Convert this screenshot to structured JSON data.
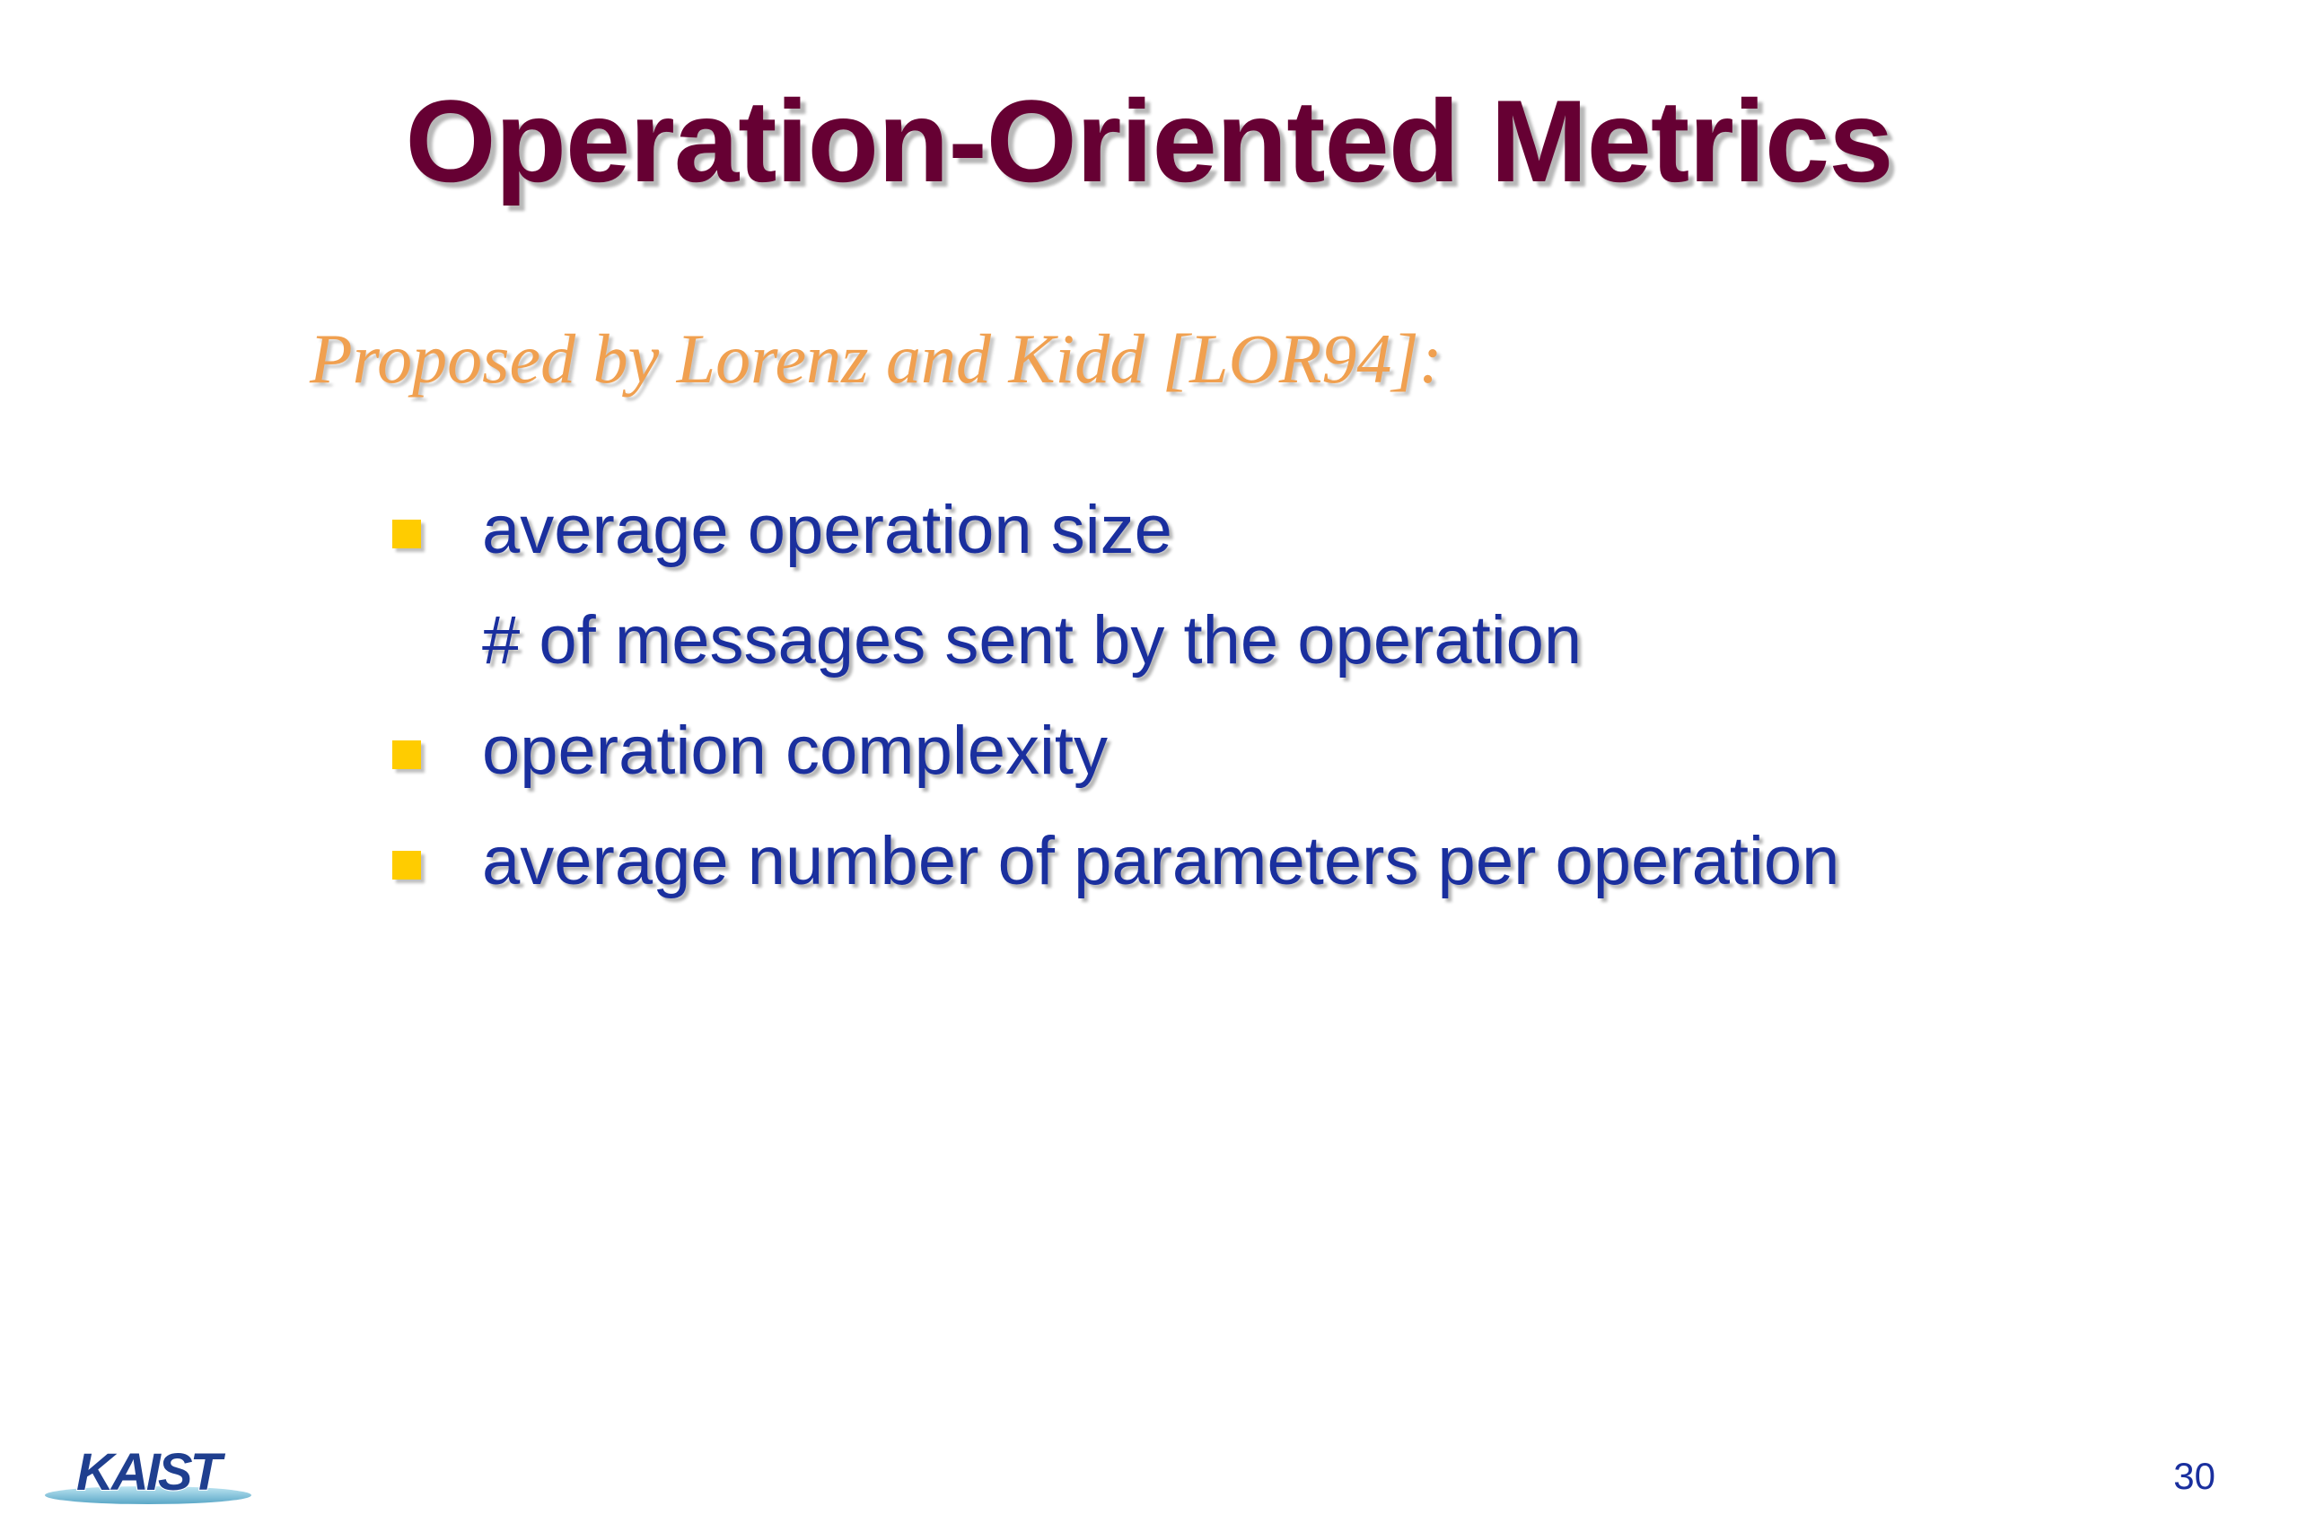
{
  "slide": {
    "title": "Operation-Oriented Metrics",
    "subtitle": "Proposed by Lorenz and Kidd [LOR94]:",
    "items": [
      {
        "text": "average operation size",
        "bullet": true
      },
      {
        "text": "# of messages sent by the operation",
        "bullet": false
      },
      {
        "text": "operation complexity",
        "bullet": true
      },
      {
        "text": "average number of parameters per operation",
        "bullet": true
      }
    ],
    "logo_text": "KAIST",
    "page_number": "30"
  },
  "colors": {
    "title": "#660033",
    "subtitle": "#f0a050",
    "body": "#1a2f9e",
    "bullet": "#ffcc00",
    "logo": "#1f3f8f"
  }
}
